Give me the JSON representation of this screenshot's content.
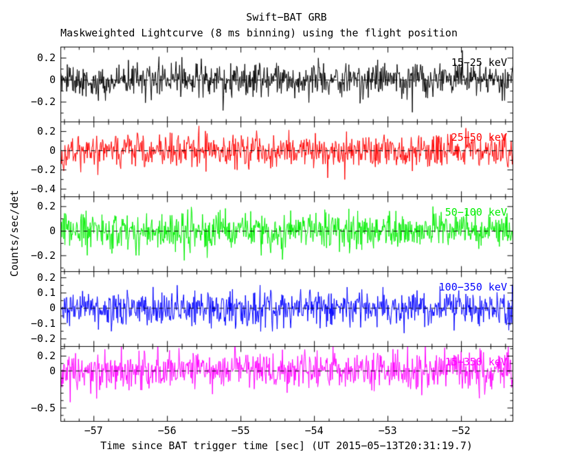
{
  "chart_data": {
    "type": "line",
    "title": "Swift−BAT GRB",
    "subtitle": "Maskweighted Lightcurve (8 ms binning) using the flight position",
    "xlabel": "Time since BAT trigger time [sec] (UT 2015−05−13T20:31:19.7)",
    "ylabel": "Counts/sec/det",
    "xlim": [
      -57.45,
      -51.3
    ],
    "xticks": [
      -57,
      -56,
      -55,
      -54,
      -53,
      -52
    ],
    "x_minor_step": 0.2,
    "bin_seconds": 0.008,
    "n_bins": 770,
    "grid": false,
    "zero_line": {
      "style": "dashed",
      "color": "#000000"
    },
    "description": "Five stacked panels of zero-mean mask-weighted noise lightcurves (no burst in window); each panel is gaussian noise about 0 with the sigma listed, occasional spikes to ~2x sigma.",
    "panels": [
      {
        "band": "15−25 keV",
        "color": "#000000",
        "ylim": [
          -0.38,
          0.3
        ],
        "yticks": [
          0.2,
          0,
          -0.2
        ],
        "y_minor_step": 0.1,
        "mean": 0,
        "noise_sigma": 0.075,
        "seed": 11
      },
      {
        "band": "25−50 keV",
        "color": "#ff0000",
        "ylim": [
          -0.48,
          0.3
        ],
        "yticks": [
          0.2,
          0,
          -0.2,
          -0.4
        ],
        "y_minor_step": 0.1,
        "mean": 0,
        "noise_sigma": 0.085,
        "seed": 22
      },
      {
        "band": "50−100 keV",
        "color": "#00ee00",
        "ylim": [
          -0.33,
          0.28
        ],
        "yticks": [
          0.2,
          0,
          -0.2
        ],
        "y_minor_step": 0.1,
        "mean": 0,
        "noise_sigma": 0.075,
        "seed": 33
      },
      {
        "band": "100−350 keV",
        "color": "#0000ff",
        "ylim": [
          -0.25,
          0.24
        ],
        "yticks": [
          0.2,
          0.1,
          0,
          -0.1,
          -0.2
        ],
        "y_minor_step": 0.05,
        "mean": 0,
        "noise_sigma": 0.058,
        "seed": 44
      },
      {
        "band": "15−350 keV",
        "color": "#ff00ff",
        "ylim": [
          -0.68,
          0.33
        ],
        "yticks": [
          0.2,
          0,
          -0.5
        ],
        "y_minor_step": 0.1,
        "mean": 0,
        "noise_sigma": 0.125,
        "seed": 55
      }
    ]
  }
}
